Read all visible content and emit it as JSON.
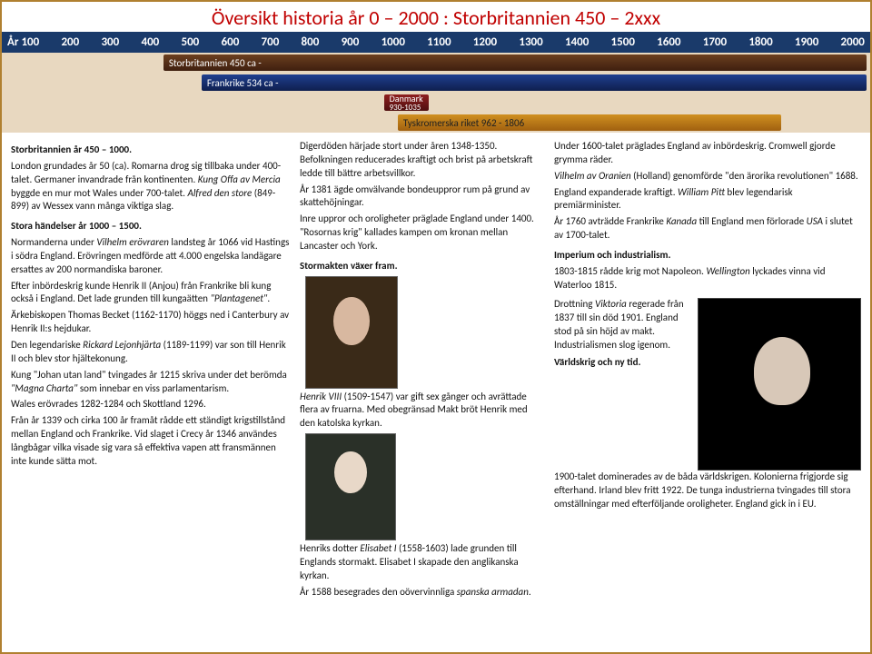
{
  "title": "Översikt historia år 0 – 2000 : Storbritannien 450 – 2xxx",
  "timeline": {
    "years": [
      "År 100",
      "200",
      "300",
      "400",
      "500",
      "600",
      "700",
      "800",
      "900",
      "1000",
      "1100",
      "1200",
      "1300",
      "1400",
      "1500",
      "1600",
      "1700",
      "1800",
      "1900",
      "2000"
    ],
    "bars": {
      "sb": "Storbritannien 450 ca -",
      "fr": "Frankrike 534 ca -",
      "dk_label": "Danmark",
      "dk_years": "930-1035",
      "tr": "Tyskromerska riket 962 - 1806"
    },
    "colors": {
      "header_bg": "#1a3a6a",
      "band_bg": "#e8d8c0",
      "sb_bar": "#4f2a12",
      "fr_bar": "#16306a",
      "dk_bar": "#6e1515",
      "tr_bar": "#c07c18"
    }
  },
  "col1": {
    "h1": "Storbritannien år 450 – 1000.",
    "p1a": "London grundades år 50 (ca). Romarna drog sig tillbaka under 400-talet. Germaner invandrade från kontinenten. ",
    "p1b_i": "Kung Offa av Mercia",
    "p1b": " byggde en mur mot Wales under 700-talet. ",
    "p1c_i": "Alfred den store",
    "p1c": " (849-899) av Wessex vann många viktiga slag.",
    "h2": "Stora händelser år 1000 – 1500.",
    "p2a": "Normanderna under ",
    "p2a_i": "Vilhelm erövraren",
    "p2a2": " landsteg år 1066 vid Hastings i södra England. Erövringen medförde att 4.000 engelska landägare ersattes av 200 normandiska baroner.",
    "p2b": "Efter inbördeskrig kunde Henrik II (Anjou) från Frankrike bli kung också i England. Det lade grunden till kungaätten ",
    "p2b_i": "\"Plantagenet\"",
    "p2b2": ".",
    "p2c": "Ärkebiskopen Thomas Becket (1162-1170) höggs ned i Canterbury av Henrik II:s hejdukar.",
    "p2d": "Den legendariske ",
    "p2d_i": "Rickard Lejonhjärta",
    "p2d2": " (1189-1199) var son till Henrik II och blev stor hjältekonung.",
    "p2e": "Kung \"Johan utan land\" tvingades år 1215 skriva under det berömda ",
    "p2e_i": "\"Magna Charta\"",
    "p2e2": " som innebar en viss parlamentarism.",
    "p2f": "Wales erövrades 1282-1284 och Skottland 1296.",
    "p2g": "Från år 1339 och cirka 100 år framåt rådde ett ständigt krigstillstånd mellan England och Frankrike. Vid slaget i Crecy år 1346 användes långbågar vilka visade sig vara så effektiva vapen att fransmännen inte kunde sätta mot."
  },
  "col2": {
    "p1": "Digerdöden härjade stort under åren 1348-1350. Befolkningen reducerades kraftigt och brist på arbetskraft ledde till bättre arbetsvillkor.",
    "p2": "År 1381 ägde omvälvande bondeuppror rum på grund av skattehöjningar.",
    "p3": "Inre uppror och oroligheter präglade England under 1400. \"Rosornas krig\" kallades kampen om kronan mellan Lancaster och York.",
    "h1": "Stormakten växer fram.",
    "p4_i": "Henrik VIII",
    "p4": " (1509-1547) var gift sex gånger och avrättade flera av fruarna. Med obegränsad Makt bröt Henrik med den katolska kyrkan.",
    "p5a": "Henriks dotter ",
    "p5a_i": "Elisabet I",
    "p5b": " (1558-1603) lade grunden till Englands stormakt. Elisabet I skapade den anglikanska kyrkan.",
    "p6": "År 1588 besegrades den oövervinnliga ",
    "p6_i": "spanska armadan",
    "p6b": "."
  },
  "col3": {
    "p1": "Under 1600-talet präglades England av inbördeskrig. Cromwell gjorde grymma räder.",
    "p2_i": "Vilhelm av Oranien",
    "p2": " (Holland) genomförde \"den ärorika revolutionen\" 1688.",
    "p3": "England expanderade kraftigt. ",
    "p3_i": "William Pitt",
    "p3b": " blev legendarisk premiärminister.",
    "p4": "År 1760 avträdde Frankrike ",
    "p4_i1": "Kanada",
    "p4b": " till England men förlorade ",
    "p4_i2": "USA",
    "p4c": " i slutet av 1700-talet.",
    "h1": "Imperium och industrialism.",
    "p5": "1803-1815 rådde krig mot Napoleon. ",
    "p5_i": "Wellington",
    "p5b": " lyckades vinna vid Waterloo 1815.",
    "vic1": "Drottning ",
    "vic1_i": "Viktoria",
    "vic2": " regerade från 1837 till sin död 1901. England stod på sin höjd av makt. Industrialismen slog igenom.",
    "h2": "Världskrig och ny tid.",
    "p6": "1900-talet dominerades av de båda världskrigen. Kolonierna frigjorde sig efterhand. Irland blev fritt 1922. De tunga industrierna tvingades till stora omställningar med efterföljande oroligheter. England gick in i EU."
  }
}
